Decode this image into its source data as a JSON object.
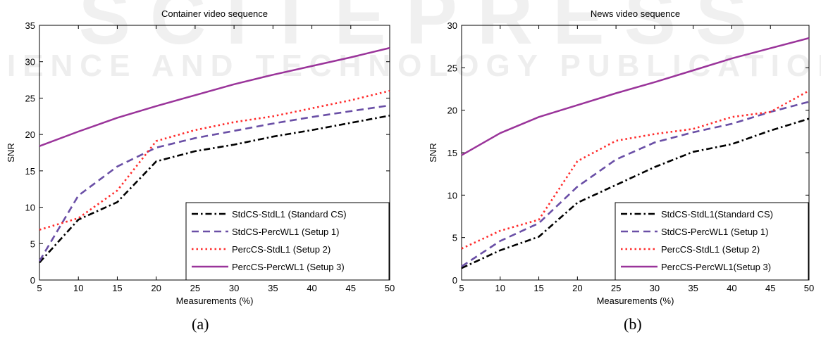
{
  "watermark": {
    "line1": "SCITEPRESS",
    "line2": "SCIENCE AND TECHNOLOGY PUBLICATIONS"
  },
  "captions": [
    "(a)",
    "(b)"
  ],
  "chart_data": [
    {
      "type": "line",
      "title": "Container video sequence",
      "xlabel": "Measurements (%)",
      "ylabel": "SNR",
      "xlim": [
        5,
        50
      ],
      "ylim": [
        0,
        35
      ],
      "xticks": [
        5,
        10,
        15,
        20,
        25,
        30,
        35,
        40,
        45,
        50
      ],
      "yticks": [
        0,
        5,
        10,
        15,
        20,
        25,
        30,
        35
      ],
      "grid": false,
      "legend_position": "bottom-right",
      "x": [
        5,
        10,
        15,
        20,
        25,
        30,
        35,
        40,
        45,
        50
      ],
      "series": [
        {
          "name": "StdCS-StdL1 (Standard CS)",
          "color": "#000000",
          "style": "dashdot",
          "values": [
            2.4,
            8.3,
            10.7,
            16.3,
            17.7,
            18.6,
            19.7,
            20.6,
            21.6,
            22.6
          ]
        },
        {
          "name": "StdCS-PercWL1 (Setup 1)",
          "color": "#6a4fa6",
          "style": "dashed",
          "values": [
            2.6,
            11.6,
            15.6,
            18.2,
            19.5,
            20.5,
            21.5,
            22.4,
            23.2,
            24.0
          ]
        },
        {
          "name": "PercCS-StdL1 (Setup 2)",
          "color": "#ff2a2a",
          "style": "dotted",
          "values": [
            6.9,
            8.5,
            12.3,
            19.1,
            20.6,
            21.7,
            22.5,
            23.6,
            24.7,
            26.0
          ]
        },
        {
          "name": "PercCS-PercWL1 (Setup 3)",
          "color": "#9a349a",
          "style": "solid",
          "values": [
            18.4,
            20.4,
            22.3,
            23.9,
            25.4,
            26.9,
            28.2,
            29.4,
            30.6,
            31.9
          ]
        }
      ]
    },
    {
      "type": "line",
      "title": "News video sequence",
      "xlabel": "Measurements (%)",
      "ylabel": "SNR",
      "xlim": [
        5,
        50
      ],
      "ylim": [
        0,
        30
      ],
      "xticks": [
        5,
        10,
        15,
        20,
        25,
        30,
        35,
        40,
        45,
        50
      ],
      "yticks": [
        0,
        5,
        10,
        15,
        20,
        25,
        30
      ],
      "grid": false,
      "legend_position": "bottom-right",
      "x": [
        5,
        10,
        15,
        20,
        25,
        30,
        35,
        40,
        45,
        50
      ],
      "series": [
        {
          "name": "StdCS-StdL1(Standard CS)",
          "color": "#000000",
          "style": "dashdot",
          "values": [
            1.4,
            3.5,
            5.1,
            9.1,
            11.2,
            13.3,
            15.1,
            16.0,
            17.6,
            19.0
          ]
        },
        {
          "name": "StdCS-PercWL1 (Setup 1)",
          "color": "#6a4fa6",
          "style": "dashed",
          "values": [
            1.6,
            4.6,
            6.7,
            11.0,
            14.2,
            16.2,
            17.4,
            18.4,
            19.8,
            21.0
          ]
        },
        {
          "name": "PercCS-StdL1 (Setup 2)",
          "color": "#ff2a2a",
          "style": "dotted",
          "values": [
            3.7,
            5.8,
            7.1,
            14.0,
            16.4,
            17.2,
            17.8,
            19.2,
            19.8,
            22.3
          ]
        },
        {
          "name": "PercCS-PercWL1(Setup 3)",
          "color": "#9a349a",
          "style": "solid",
          "values": [
            14.7,
            17.3,
            19.2,
            20.6,
            22.0,
            23.3,
            24.7,
            26.1,
            27.3,
            28.5
          ]
        }
      ]
    }
  ]
}
